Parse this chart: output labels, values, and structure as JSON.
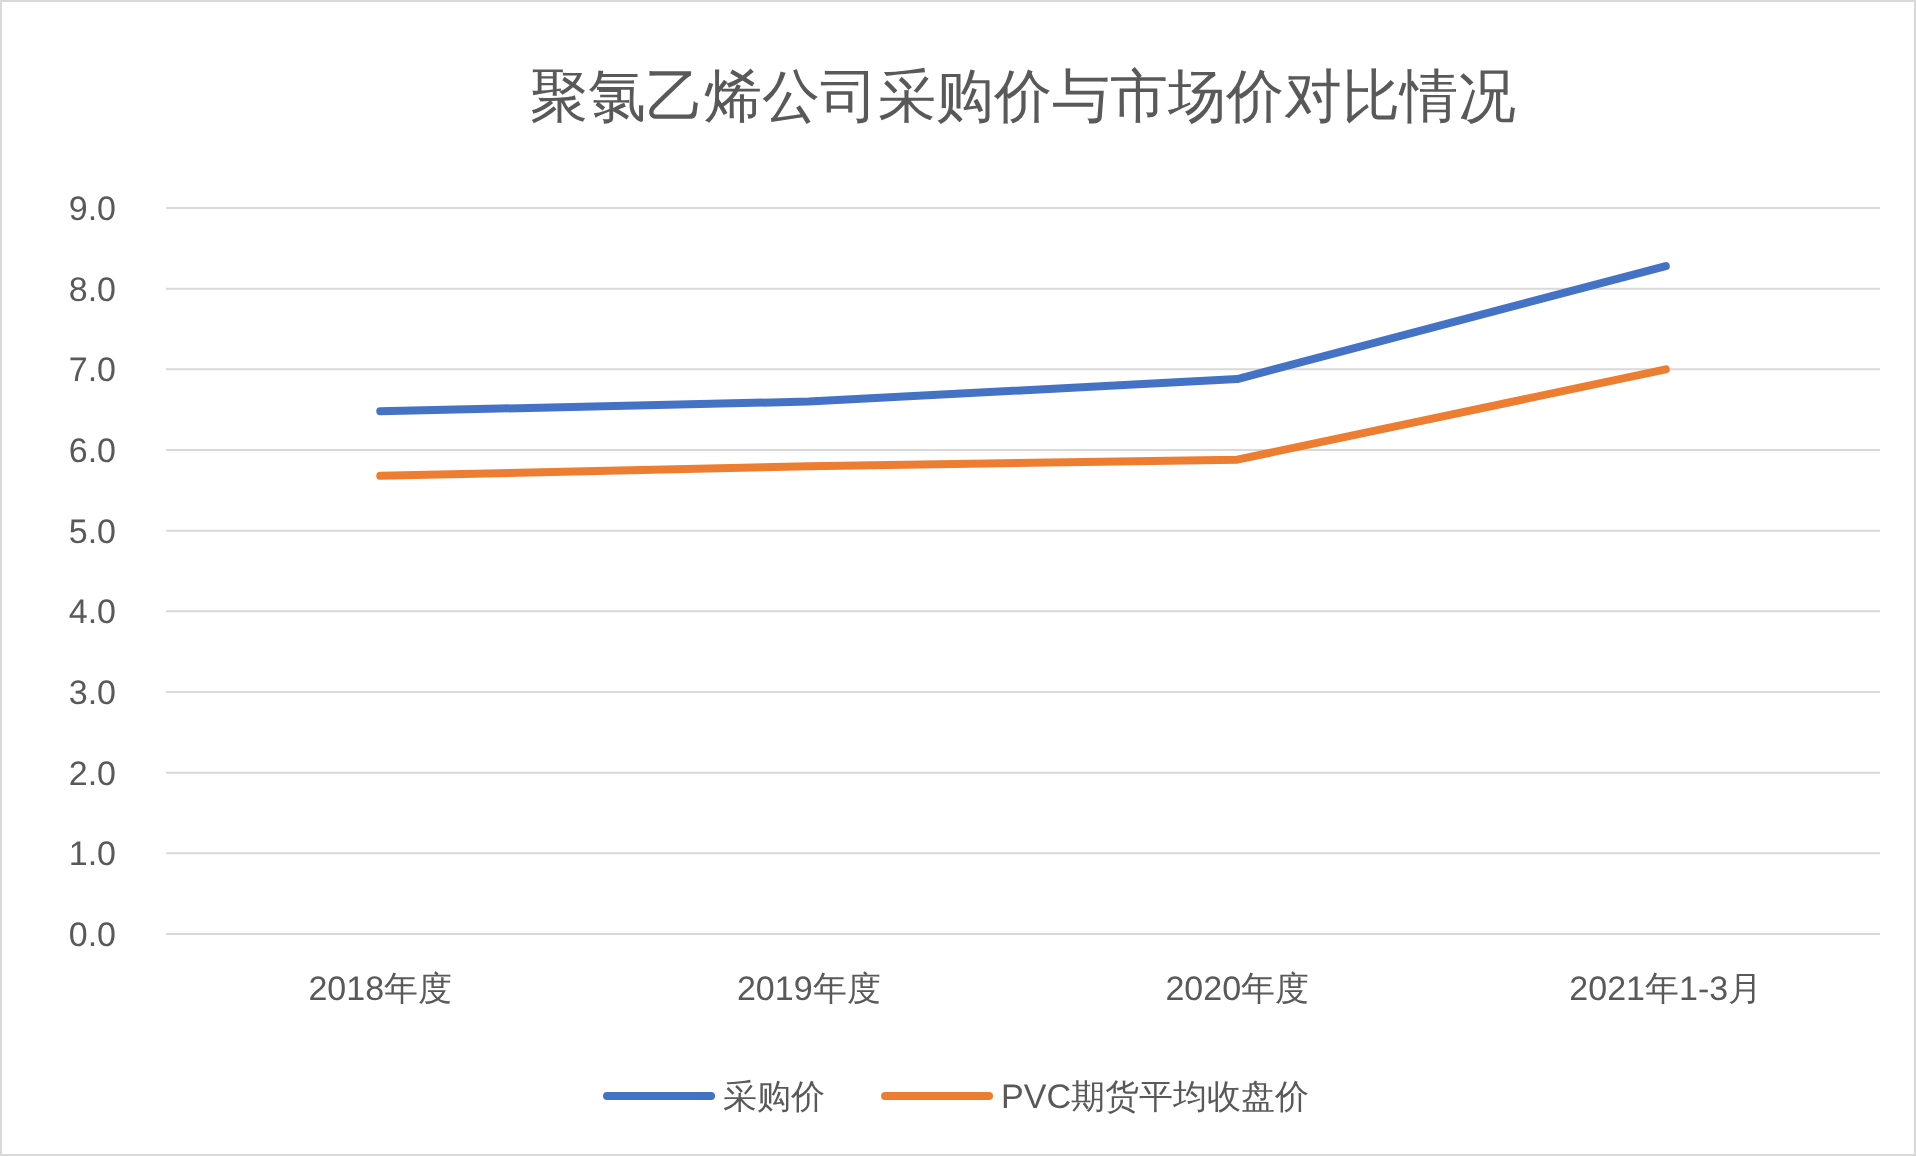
{
  "chart_data": {
    "type": "line",
    "title": "聚氯乙烯公司采购价与市场价对比情况",
    "categories": [
      "2018年度",
      "2019年度",
      "2020年度",
      "2021年1-3月"
    ],
    "series": [
      {
        "name": "采购价",
        "color": "#4472c4",
        "values": [
          6.48,
          6.6,
          6.88,
          8.28
        ]
      },
      {
        "name": "PVC期货平均收盘价",
        "color": "#ed7d31",
        "values": [
          5.68,
          5.8,
          5.88,
          7.0
        ]
      }
    ],
    "ylim": [
      0,
      9
    ],
    "yticks": [
      {
        "value": 0,
        "label": "0.0"
      },
      {
        "value": 1,
        "label": "1.0"
      },
      {
        "value": 2,
        "label": "2.0"
      },
      {
        "value": 3,
        "label": "3.0"
      },
      {
        "value": 4,
        "label": "4.0"
      },
      {
        "value": 5,
        "label": "5.0"
      },
      {
        "value": 6,
        "label": "6.0"
      },
      {
        "value": 7,
        "label": "7.0"
      },
      {
        "value": 8,
        "label": "8.0"
      },
      {
        "value": 9,
        "label": "9.0"
      }
    ],
    "grid": "y",
    "legend": "bottom",
    "marker": "none",
    "line_style": "solid"
  }
}
